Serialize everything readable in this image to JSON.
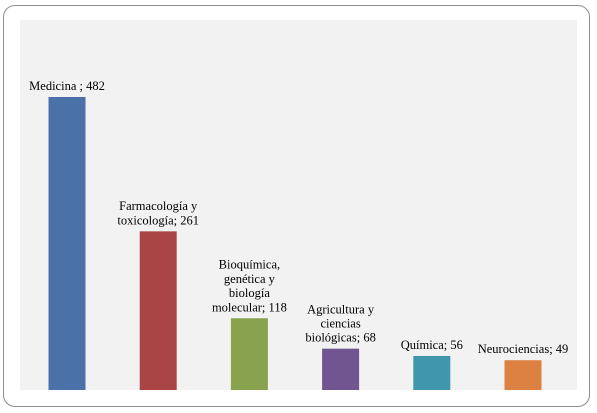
{
  "chart_data": {
    "type": "bar",
    "title": "",
    "xlabel": "",
    "ylabel": "",
    "ylim": [
      0,
      520
    ],
    "grid": false,
    "legend": "none",
    "plot_background": "#f2f2f2",
    "categories": [
      "Medicina",
      "Farmacología y toxicología",
      "Bioquímica, genética y biología molecular",
      "Agricultura y ciencias biológicas",
      "Química",
      "Neurociencias"
    ],
    "values": [
      482,
      261,
      118,
      68,
      56,
      49
    ],
    "colors": [
      "#4a72a8",
      "#a94545",
      "#88a24e",
      "#715591",
      "#4097ad",
      "#dc8142"
    ],
    "data_labels": [
      [
        "Medicina ; 482"
      ],
      [
        "Farmacología y",
        "toxicología; 261"
      ],
      [
        "Bioquímica,",
        "genética y",
        "biología",
        "molecular; 118"
      ],
      [
        "Agricultura y",
        "ciencias",
        "biológicas; 68"
      ],
      [
        "Química; 56"
      ],
      [
        "Neurociencias; 49"
      ]
    ]
  }
}
